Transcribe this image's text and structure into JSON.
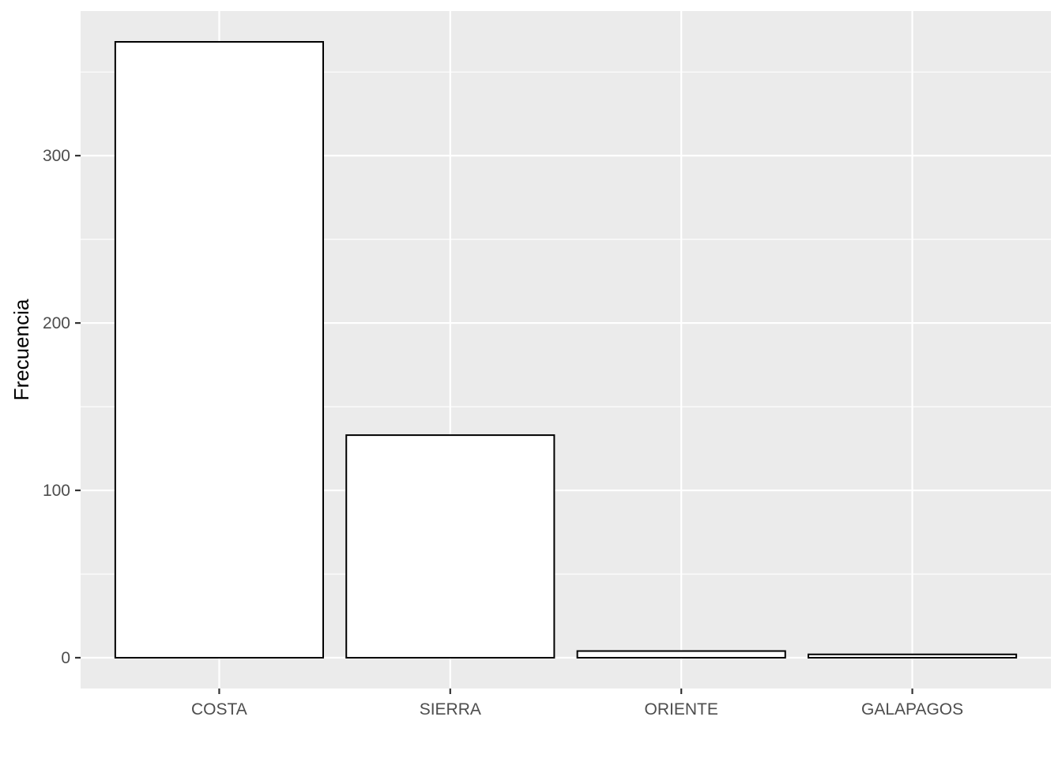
{
  "chart_data": {
    "type": "bar",
    "title": "",
    "xlabel": "",
    "ylabel": "Frecuencia",
    "categories": [
      "COSTA",
      "SIERRA",
      "ORIENTE",
      "GALAPAGOS"
    ],
    "values": [
      368,
      133,
      4,
      2
    ],
    "ylim": [
      -18.4,
      386.4
    ],
    "y_ticks": [
      0,
      100,
      200,
      300
    ],
    "y_tick_labels": [
      "0",
      "100",
      "200",
      "300"
    ],
    "grid": true,
    "legend": "none",
    "colors": {
      "panel": "#ebebeb",
      "grid": "#ffffff",
      "bar_fill": "#ffffff",
      "bar_border": "#000000",
      "tick_text": "#4d4d4d"
    }
  }
}
